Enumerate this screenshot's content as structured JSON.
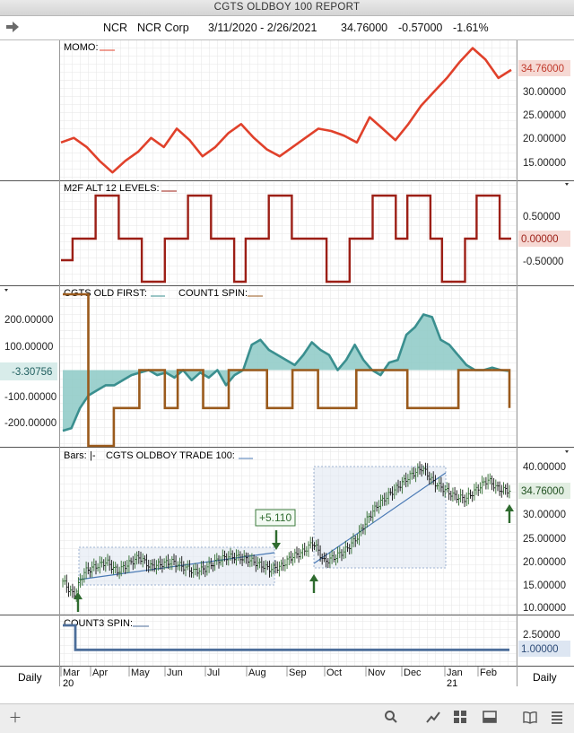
{
  "window": {
    "title": "CGTS OLDBOY 100  REPORT"
  },
  "header": {
    "back_icon": "arrow-right-icon",
    "symbol": "NCR",
    "company": "NCR Corp",
    "date_range": "3/11/2020 - 2/26/2021",
    "last": "34.76000",
    "change": "-0.57000",
    "change_pct": "-1.61%"
  },
  "panes": {
    "momo": {
      "label": "MOMO:",
      "value_tag": "34.76000",
      "ticks": [
        "30.00000",
        "25.00000",
        "20.00000",
        "15.00000"
      ],
      "line_color": "#e0412b"
    },
    "m2f": {
      "label": "M2F ALT 12 LEVELS:",
      "value_tag": "0.00000",
      "ticks": [
        "0.50000",
        "-0.50000"
      ],
      "line_color": "#9c1f16"
    },
    "old_first": {
      "label1": "CGTS OLD FIRST:",
      "label2": "COUNT1 SPIN:",
      "value_tag": "-3.30756",
      "ticks": [
        "200.00000",
        "100.00000",
        "-100.00000",
        "-200.00000"
      ],
      "fill_color": "#8cc9c5",
      "line_color": "#3a8f8f",
      "spin_color": "#9a5a1c"
    },
    "bars": {
      "label1": "Bars:",
      "label2": "|-",
      "label3": "CGTS OLDBOY TRADE 100:",
      "value_tag": "34.76000",
      "ticks": [
        "40.00000",
        "30.00000",
        "25.00000",
        "20.00000",
        "15.00000",
        "10.00000"
      ],
      "trade_label": "+5.110",
      "up_color": "#2f6b2f",
      "down_color": "#111111"
    },
    "count3": {
      "label": "COUNT3 SPIN:",
      "value_tag": "1.00000",
      "ticks": [
        "2.50000"
      ],
      "line_color": "#4d6e9a"
    }
  },
  "xaxis": {
    "left_label": "Daily",
    "right_label": "Daily",
    "months": [
      "Mar",
      "Apr",
      "May",
      "Jun",
      "Jul",
      "Aug",
      "Sep",
      "Oct",
      "Nov",
      "Dec",
      "Jan",
      "Feb"
    ],
    "year_start": "20",
    "year_next": "21"
  },
  "chart_data": [
    {
      "type": "line",
      "title": "MOMO:",
      "series": [
        {
          "values": [
            19,
            20,
            18,
            15,
            12.5,
            15,
            17,
            20,
            18,
            22,
            19.5,
            16,
            18,
            21,
            23,
            20,
            17.5,
            16,
            18,
            20,
            22,
            21.5,
            20.5,
            19,
            24.5,
            22,
            19.5,
            23,
            27,
            30,
            33,
            36.5,
            39.5,
            37,
            33,
            34.76
          ]
        }
      ]
    },
    {
      "type": "line",
      "title": "M2F ALT 12 LEVELS:",
      "ylim": [
        -1,
        1
      ],
      "series": [
        {
          "values": [
            -0.5,
            0,
            0,
            1,
            1,
            0,
            0,
            -1,
            -1,
            0,
            0,
            1,
            1,
            0,
            0,
            -1,
            0,
            0,
            1,
            1,
            0,
            0,
            0,
            -1,
            -1,
            0,
            0,
            1,
            1,
            0,
            1,
            1,
            0,
            -1,
            -1,
            0,
            1,
            1,
            0,
            0
          ]
        }
      ]
    },
    {
      "type": "area",
      "title": "CGTS OLD FIRST:",
      "ylim": [
        -300,
        300
      ],
      "series": [
        {
          "name": "CGTS OLD FIRST",
          "values": [
            -240,
            -230,
            -150,
            -100,
            -80,
            -60,
            -60,
            -40,
            -20,
            -10,
            0,
            -20,
            -10,
            -30,
            0,
            -40,
            -10,
            -30,
            0,
            -60,
            -20,
            0,
            100,
            120,
            80,
            60,
            40,
            20,
            60,
            110,
            80,
            60,
            0,
            40,
            100,
            40,
            0,
            -20,
            30,
            40,
            140,
            170,
            220,
            210,
            120,
            100,
            60,
            20,
            0,
            0,
            10,
            0,
            -3.3
          ]
        },
        {
          "name": "COUNT1 SPIN",
          "values": [
            300,
            300,
            -300,
            -300,
            -150,
            -150,
            0,
            0,
            -150,
            0,
            0,
            -150,
            -150,
            0,
            0,
            0,
            -150,
            -150,
            0,
            0,
            -150,
            -150,
            -150,
            0,
            0,
            0,
            0,
            -150,
            -150,
            -150,
            -150,
            0,
            0,
            0,
            0,
            -150
          ]
        }
      ]
    },
    {
      "type": "bar",
      "title": "CGTS OLDBOY TRADE 100:",
      "ylim": [
        10,
        41
      ],
      "series": [
        {
          "values": [
            16,
            13,
            18,
            19,
            20,
            18,
            19.5,
            21,
            19,
            19.5,
            20,
            19,
            18,
            18.5,
            20,
            21,
            21,
            20.5,
            19.5,
            18.5,
            19,
            21,
            22,
            24,
            20,
            21,
            22.5,
            25,
            29,
            32,
            34,
            36,
            38,
            39.5,
            36.5,
            35,
            33.5,
            33,
            35,
            37,
            35,
            34.76
          ]
        }
      ]
    },
    {
      "type": "line",
      "title": "COUNT3 SPIN:",
      "ylim": [
        0,
        3
      ],
      "series": [
        {
          "values": [
            3,
            3,
            1,
            1,
            1,
            1,
            1,
            1
          ]
        }
      ]
    }
  ]
}
